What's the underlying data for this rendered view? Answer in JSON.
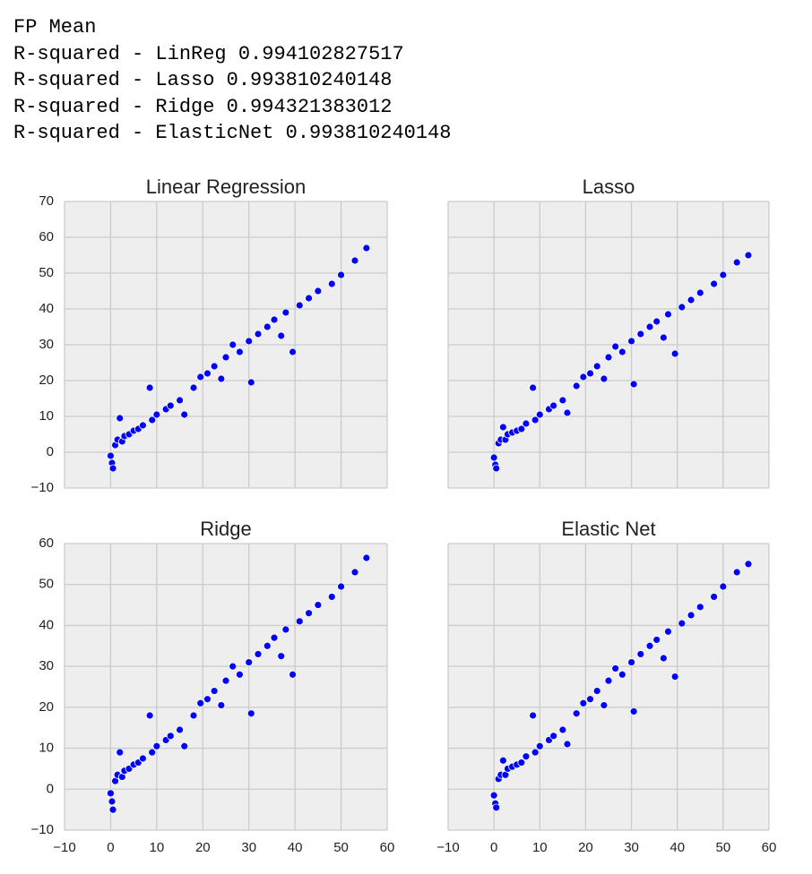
{
  "output_text": [
    "FP Mean",
    "R-squared - LinReg 0.994102827517",
    "R-squared - Lasso 0.993810240148",
    "R-squared - Ridge 0.994321383012",
    "R-squared - ElasticNet 0.993810240148"
  ],
  "chart_data": [
    {
      "type": "scatter",
      "title": "Linear Regression",
      "color": "#0000ff",
      "grid": true,
      "xlim": [
        -10,
        60
      ],
      "xticks": [
        {
          "value": -10,
          "label": "−10"
        },
        0,
        10,
        20,
        30,
        40,
        50,
        60
      ],
      "ylim": [
        -10,
        70
      ],
      "yticks": [
        {
          "value": -10,
          "label": "−10"
        },
        0,
        10,
        20,
        30,
        40,
        50,
        60,
        70
      ],
      "x": [
        0,
        0.3,
        0.5,
        1,
        1.5,
        2,
        2.5,
        3,
        4,
        5,
        6,
        7,
        8.5,
        9,
        10,
        12,
        13,
        15,
        16,
        18,
        19.5,
        21,
        22.5,
        24,
        25,
        26.5,
        28,
        30,
        30.5,
        32,
        34,
        35.5,
        37,
        38,
        39.5,
        41,
        43,
        45,
        48,
        50,
        53,
        55.5
      ],
      "values": [
        -1,
        -3,
        -4.5,
        2,
        3.5,
        9.5,
        3,
        4.5,
        5,
        6,
        6.5,
        7.5,
        18,
        9,
        10.5,
        12,
        13,
        14.5,
        10.5,
        18,
        21,
        22,
        24,
        20.5,
        26.5,
        30,
        28,
        31,
        19.5,
        33,
        35,
        37,
        32.5,
        39,
        28,
        41,
        43,
        45,
        47,
        49.5,
        53.5,
        57
      ]
    },
    {
      "type": "scatter",
      "title": "Lasso",
      "color": "#0000ff",
      "grid": true,
      "xlim": [
        -10,
        60
      ],
      "xticks": [
        -10,
        0,
        10,
        20,
        30,
        40,
        50,
        60
      ],
      "ylim": [
        -10,
        70
      ],
      "yticks": [
        -10,
        0,
        10,
        20,
        30,
        40,
        50,
        60,
        70
      ],
      "x": [
        0,
        0.3,
        0.5,
        1,
        1.5,
        2,
        2.5,
        3,
        4,
        5,
        6,
        7,
        8.5,
        9,
        10,
        12,
        13,
        15,
        16,
        18,
        19.5,
        21,
        22.5,
        24,
        25,
        26.5,
        28,
        30,
        30.5,
        32,
        34,
        35.5,
        37,
        38,
        39.5,
        41,
        43,
        45,
        48,
        50,
        53,
        55.5
      ],
      "values": [
        -1.5,
        -3.5,
        -4.5,
        2.5,
        3.5,
        7,
        3.5,
        5,
        5.5,
        6,
        6.5,
        8,
        18,
        9,
        10.5,
        12,
        13,
        14.5,
        11,
        18.5,
        21,
        22,
        24,
        20.5,
        26.5,
        29.5,
        28,
        31,
        19,
        33,
        35,
        36.5,
        32,
        38.5,
        27.5,
        40.5,
        42.5,
        44.5,
        47,
        49.5,
        53,
        55
      ]
    },
    {
      "type": "scatter",
      "title": "Ridge",
      "color": "#0000ff",
      "grid": true,
      "xlim": [
        -10,
        60
      ],
      "xticks": [
        {
          "value": -10,
          "label": "−10"
        },
        0,
        10,
        20,
        30,
        40,
        50,
        60
      ],
      "ylim": [
        -10,
        60
      ],
      "yticks": [
        {
          "value": -10,
          "label": "−10"
        },
        0,
        10,
        20,
        30,
        40,
        50,
        60
      ],
      "x": [
        0,
        0.3,
        0.5,
        1,
        1.5,
        2,
        2.5,
        3,
        4,
        5,
        6,
        7,
        8.5,
        9,
        10,
        12,
        13,
        15,
        16,
        18,
        19.5,
        21,
        22.5,
        24,
        25,
        26.5,
        28,
        30,
        30.5,
        32,
        34,
        35.5,
        37,
        38,
        39.5,
        41,
        43,
        45,
        48,
        50,
        53,
        55.5
      ],
      "values": [
        -1,
        -3,
        -5,
        2,
        3.5,
        9,
        3,
        4.5,
        5,
        6,
        6.5,
        7.5,
        18,
        9,
        10.5,
        12,
        13,
        14.5,
        10.5,
        18,
        21,
        22,
        24,
        20.5,
        26.5,
        30,
        28,
        31,
        18.5,
        33,
        35,
        37,
        32.5,
        39,
        28,
        41,
        43,
        45,
        47,
        49.5,
        53,
        56.5
      ]
    },
    {
      "type": "scatter",
      "title": "Elastic Net",
      "color": "#0000ff",
      "grid": true,
      "xlim": [
        -10,
        60
      ],
      "xticks": [
        {
          "value": -10,
          "label": "−10"
        },
        0,
        10,
        20,
        30,
        40,
        50,
        60
      ],
      "ylim": [
        -10,
        60
      ],
      "yticks": [
        -10,
        0,
        10,
        20,
        30,
        40,
        50,
        60
      ],
      "x": [
        0,
        0.3,
        0.5,
        1,
        1.5,
        2,
        2.5,
        3,
        4,
        5,
        6,
        7,
        8.5,
        9,
        10,
        12,
        13,
        15,
        16,
        18,
        19.5,
        21,
        22.5,
        24,
        25,
        26.5,
        28,
        30,
        30.5,
        32,
        34,
        35.5,
        37,
        38,
        39.5,
        41,
        43,
        45,
        48,
        50,
        53,
        55.5
      ],
      "values": [
        -1.5,
        -3.5,
        -4.5,
        2.5,
        3.5,
        7,
        3.5,
        5,
        5.5,
        6,
        6.5,
        8,
        18,
        9,
        10.5,
        12,
        13,
        14.5,
        11,
        18.5,
        21,
        22,
        24,
        20.5,
        26.5,
        29.5,
        28,
        31,
        19,
        33,
        35,
        36.5,
        32,
        38.5,
        27.5,
        40.5,
        42.5,
        44.5,
        47,
        49.5,
        53,
        55
      ]
    }
  ]
}
